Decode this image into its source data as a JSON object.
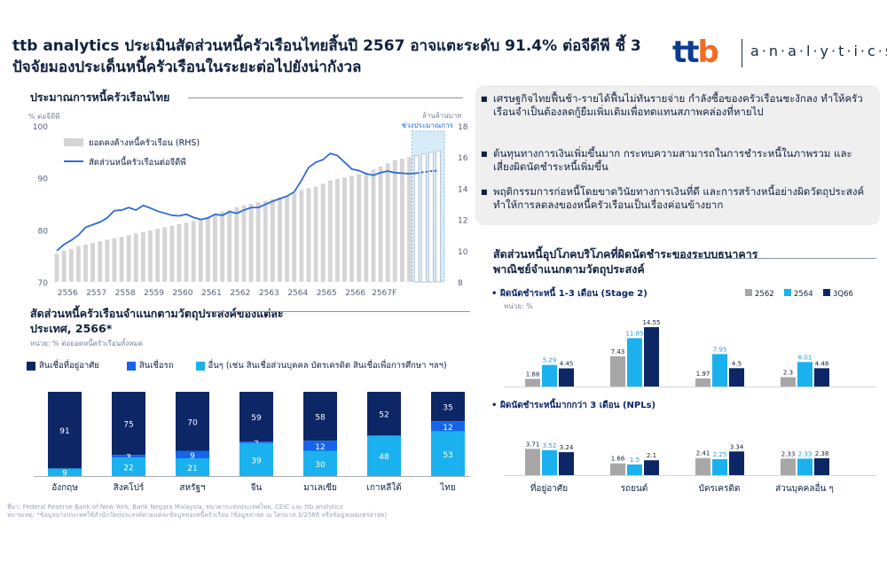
{
  "headline": "ttb analytics ประเมินสัดส่วนหนี้ครัวเรือนไทยสิ้นปี 2567 อาจแตะระดับ 91.4% ต่อจีดีพี ชี้ 3 ปัจจัยมองประเด็นหนี้ครัวเรือนในระยะต่อไปยังน่ากังวล",
  "logo": {
    "ttb": "ttb",
    "analytics": "a·n·a·l·y·t·i·c·s"
  },
  "colors": {
    "navy": "#0d2666",
    "blue": "#1565e8",
    "cyan": "#1ab1ee",
    "gray": "#a7a7a7",
    "light_gray": "#d5d5d5",
    "line": "#2e6bd6",
    "forecast": "#d8ecf8"
  },
  "notes": [
    "เศรษฐกิจไทยฟื้นช้า-รายได้ฟื้นไม่ทันรายจ่าย กำลังซื้อของครัวเรือนชะงักลง ทำให้ครัวเรือนจำเป็นต้องลดกู้ยืมเพิ่มเติมเพื่อทดแทนสภาพคล่องที่หายไป",
    "ต้นทุนทางการเงินเพิ่มขึ้นมาก กระทบความสามารถในการชำระหนี้ในภาพรวม และเสี่ยงผิดนัดชำระหนี้เพิ่มขึ้น",
    "พฤติกรรมการก่อหนี้โดยขาดวินัยทางการเงินที่ดี และการสร้างหนี้อย่างผิดวัตถุประสงค์ ทำให้การลดลงของหนี้ครัวเรือนเป็นเรื่องค่อนข้างยาก"
  ],
  "chart_data": [
    {
      "type": "line",
      "title": "ประมาณการหนี้ครัวเรือนไทย",
      "ylabel": "% ต่อจีดีพี",
      "y2label": "ล้านล้านบาท",
      "forecast_label": "ช่วงประมาณการ",
      "legend": {
        "bars": "ยอดคงค้างหนี้ครัวเรือน (RHS)",
        "line": "สัดส่วนหนี้ครัวเรือนต่อจีดีพี"
      },
      "x_ticks": [
        "2556",
        "2557",
        "2558",
        "2559",
        "2560",
        "2561",
        "2562",
        "2563",
        "2564",
        "2565",
        "2566",
        "2567F"
      ],
      "ylim": [
        70,
        100
      ],
      "y_ticks": [
        "70",
        "80",
        "90",
        "100"
      ],
      "y2lim": [
        8,
        18
      ],
      "y2_ticks": [
        "8",
        "10",
        "12",
        "14",
        "16",
        "18"
      ],
      "series": [
        {
          "name": "ยอดคงค้างหนี้ครัวเรือน (RHS)",
          "type": "bar",
          "values": [
            9.8,
            10.0,
            10.1,
            10.3,
            10.4,
            10.5,
            10.6,
            10.7,
            10.8,
            10.9,
            11.0,
            11.1,
            11.2,
            11.3,
            11.4,
            11.5,
            11.6,
            11.7,
            11.8,
            11.9,
            12.0,
            12.1,
            12.3,
            12.5,
            12.6,
            12.8,
            12.9,
            13.0,
            13.1,
            13.2,
            13.3,
            13.4,
            13.5,
            13.7,
            13.9,
            14.0,
            14.1,
            14.3,
            14.5,
            14.6,
            14.7,
            14.8,
            14.9,
            15.0,
            15.2,
            15.4,
            15.6,
            15.8,
            15.9,
            16.0,
            16.1,
            16.2,
            16.3,
            16.4
          ]
        },
        {
          "name": "สัดส่วนหนี้ครัวเรือนต่อจีดีพี",
          "type": "line",
          "values": [
            76.0,
            77.2,
            78.0,
            79.0,
            80.5,
            81.0,
            81.5,
            82.3,
            83.7,
            83.8,
            84.3,
            83.8,
            84.7,
            84.2,
            83.6,
            83.2,
            82.8,
            82.7,
            83.0,
            82.4,
            82.0,
            82.3,
            83.0,
            82.8,
            83.5,
            83.2,
            83.8,
            84.3,
            84.3,
            84.9,
            85.5,
            86.0,
            86.5,
            87.3,
            89.5,
            92.0,
            93.0,
            93.5,
            94.7,
            94.3,
            93.0,
            91.7,
            91.4,
            90.8,
            90.5,
            91.0,
            91.3,
            91.0,
            90.9,
            90.8,
            90.9,
            91.1,
            91.3,
            91.4
          ]
        }
      ]
    },
    {
      "type": "bar",
      "title": "สัดส่วนหนี้ครัวเรือนจำแนกตามวัตถุประสงค์ของแต่ละประเทศ, 2566*",
      "ylabel": "หน่วย: % ต่อยอดหนี้ครัวเรือนทั้งหมด",
      "stacked": true,
      "categories": [
        "อังกฤษ",
        "สิงคโปร์",
        "สหรัฐฯ",
        "จีน",
        "มาเลเซีย",
        "เกาหลีใต้",
        "ไทย"
      ],
      "series": [
        {
          "name": "สินเชื่อที่อยู่อาศัย",
          "values": [
            91,
            75,
            70,
            59,
            58,
            52,
            35
          ]
        },
        {
          "name": "สินเชื่อรถ",
          "values": [
            0,
            3,
            9,
            2,
            12,
            0,
            12
          ]
        },
        {
          "name": "อื่นๆ (เช่น สินเชื่อส่วนบุคคล บัตรเครดิต สินเชื่อเพื่อการศึกษา ฯลฯ)",
          "values": [
            9,
            22,
            21,
            39,
            30,
            48,
            53
          ]
        }
      ],
      "value_labels": [
        [
          "91",
          "",
          "9"
        ],
        [
          "75",
          "3",
          "22"
        ],
        [
          "70",
          "9",
          "21"
        ],
        [
          "59",
          "2",
          "39"
        ],
        [
          "58",
          "12",
          "30"
        ],
        [
          "52",
          "",
          "48"
        ],
        [
          "35",
          "12",
          "53"
        ]
      ]
    },
    {
      "type": "bar",
      "title": "สัดส่วนหนี้อุปโภคบริโภคที่ผิดนัดชำระของระบบธนาคารพาณิชย์จำแนกตามวัตถุประสงค์",
      "legend": [
        "2562",
        "2564",
        "3Q66"
      ],
      "unit": "หน่วย: %",
      "categories": [
        "ที่อยู่อาศัย",
        "รถยนต์",
        "บัตรเครดิต",
        "ส่วนบุคคลอื่น ๆ"
      ],
      "panels": [
        {
          "label": "ผิดนัดชำระหนี้ 1-3 เดือน (Stage 2)",
          "series": [
            {
              "name": "2562",
              "values": [
                1.88,
                7.43,
                1.97,
                2.3
              ]
            },
            {
              "name": "2564",
              "values": [
                5.29,
                11.85,
                7.95,
                6.01
              ]
            },
            {
              "name": "3Q66",
              "values": [
                4.45,
                14.55,
                4.5,
                4.48
              ]
            }
          ]
        },
        {
          "label": "ผิดนัดชำระหนี้มากกว่า 3 เดือน (NPLs)",
          "series": [
            {
              "name": "2562",
              "values": [
                3.71,
                1.66,
                2.41,
                2.33
              ]
            },
            {
              "name": "2564",
              "values": [
                3.52,
                1.5,
                2.25,
                2.33
              ]
            },
            {
              "name": "3Q66",
              "values": [
                3.24,
                2.1,
                3.34,
                2.38
              ]
            }
          ]
        }
      ]
    }
  ],
  "footnote": {
    "source": "ที่มา: Federal Reserve Bank of New York, Bank Negara Malaysia, ธนาคารแห่งประเทศไทย, CEIC และ ttb analytics",
    "note": "หมายเหตุ: *ข้อมูลบางประเทศใช้สำนักวัตถุประสงค์ตามแต่ละข้อมูลของหนี้ครัวเรือน (ข้อมูลล่าสุด ณ ไตรมาส 3/2566 หรือข้อมูลเผยแพร่ล่าสุด)"
  }
}
